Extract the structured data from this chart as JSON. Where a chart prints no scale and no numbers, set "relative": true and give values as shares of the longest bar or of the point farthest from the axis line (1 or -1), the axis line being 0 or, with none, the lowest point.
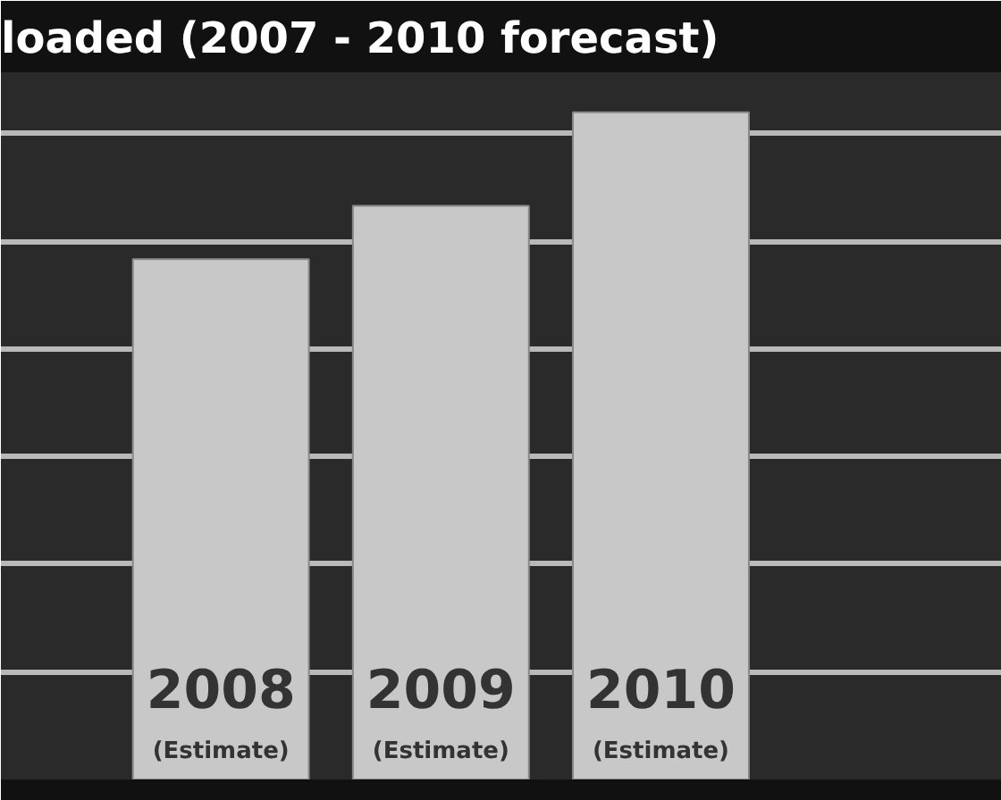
{
  "chart_data": {
    "type": "bar",
    "title": "loaded (2007 - 2010 forecast)",
    "relative": true,
    "categories": [
      "2008\n(Estimate)",
      "2009\n(Estimate)",
      "2010\n(Estimate)"
    ],
    "values": [
      0.78,
      0.86,
      1.0
    ],
    "color": "#c8c8c8",
    "grid": "y",
    "tick_labels": false
  }
}
